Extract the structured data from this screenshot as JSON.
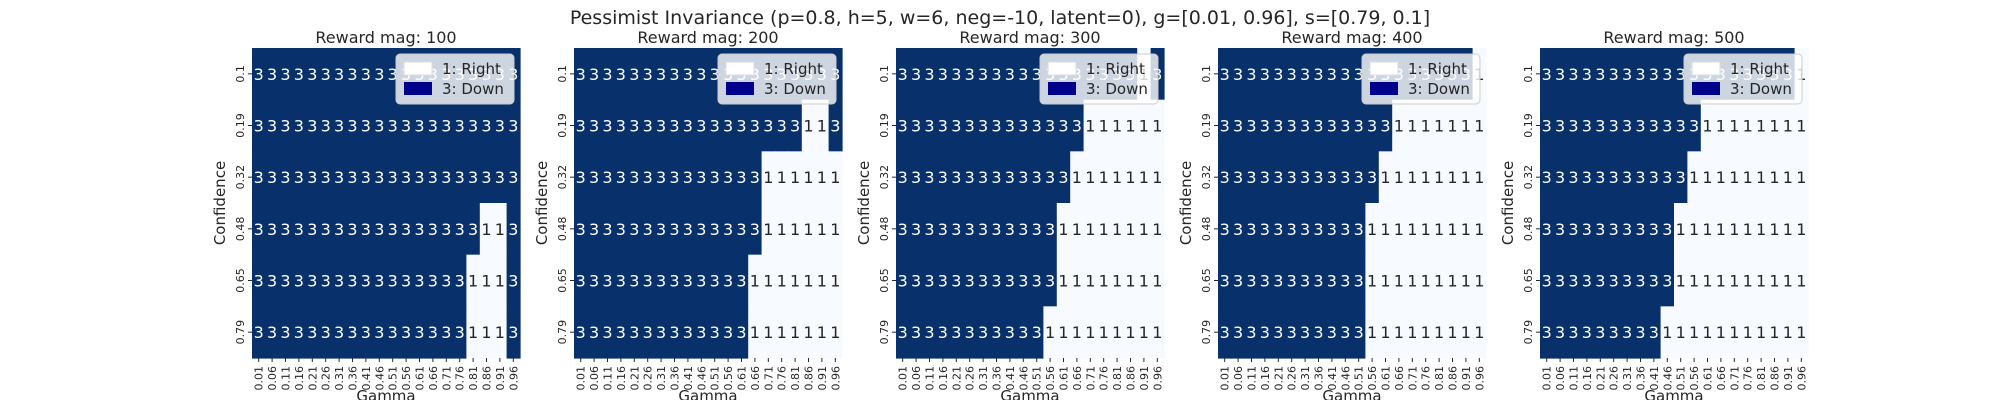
{
  "figure": {
    "title": "Pessimist Invariance (p=0.8, h=5, w=6, neg=-10, latent=0), g=[0.01, 0.96], s=[0.79, 0.1]"
  },
  "colors": {
    "down": "#08306b",
    "right": "#f7fbff",
    "text_on_down": "#ffffff",
    "text_on_right": "#262626",
    "legend_swatch_right": "#ffffff",
    "legend_swatch_down": "#00008b"
  },
  "chart_data": [
    {
      "type": "heatmap",
      "title": "Reward mag: 100",
      "xlabel": "Gamma",
      "ylabel": "Confidence",
      "x": [
        "0.01",
        "0.06",
        "0.11",
        "0.16",
        "0.21",
        "0.26",
        "0.31",
        "0.36",
        "0.41",
        "0.46",
        "0.51",
        "0.56",
        "0.61",
        "0.66",
        "0.71",
        "0.76",
        "0.81",
        "0.86",
        "0.91",
        "0.96"
      ],
      "y": [
        "0.1",
        "0.19",
        "0.32",
        "0.48",
        "0.65",
        "0.79"
      ],
      "values": [
        [
          3,
          3,
          3,
          3,
          3,
          3,
          3,
          3,
          3,
          3,
          3,
          3,
          3,
          3,
          3,
          3,
          3,
          3,
          3,
          3
        ],
        [
          3,
          3,
          3,
          3,
          3,
          3,
          3,
          3,
          3,
          3,
          3,
          3,
          3,
          3,
          3,
          3,
          3,
          3,
          3,
          3
        ],
        [
          3,
          3,
          3,
          3,
          3,
          3,
          3,
          3,
          3,
          3,
          3,
          3,
          3,
          3,
          3,
          3,
          3,
          3,
          3,
          3
        ],
        [
          3,
          3,
          3,
          3,
          3,
          3,
          3,
          3,
          3,
          3,
          3,
          3,
          3,
          3,
          3,
          3,
          3,
          1,
          1,
          3
        ],
        [
          3,
          3,
          3,
          3,
          3,
          3,
          3,
          3,
          3,
          3,
          3,
          3,
          3,
          3,
          3,
          3,
          1,
          1,
          1,
          3
        ],
        [
          3,
          3,
          3,
          3,
          3,
          3,
          3,
          3,
          3,
          3,
          3,
          3,
          3,
          3,
          3,
          3,
          1,
          1,
          1,
          3
        ]
      ],
      "legend": [
        {
          "value": 1,
          "label": "1: Right"
        },
        {
          "value": 3,
          "label": "3: Down"
        }
      ],
      "legend_position": "upper right",
      "grid": false
    },
    {
      "type": "heatmap",
      "title": "Reward mag: 200",
      "xlabel": "Gamma",
      "ylabel": "Confidence",
      "x": [
        "0.01",
        "0.06",
        "0.11",
        "0.16",
        "0.21",
        "0.26",
        "0.31",
        "0.36",
        "0.41",
        "0.46",
        "0.51",
        "0.56",
        "0.61",
        "0.66",
        "0.71",
        "0.76",
        "0.81",
        "0.86",
        "0.91",
        "0.96"
      ],
      "y": [
        "0.1",
        "0.19",
        "0.32",
        "0.48",
        "0.65",
        "0.79"
      ],
      "values": [
        [
          3,
          3,
          3,
          3,
          3,
          3,
          3,
          3,
          3,
          3,
          3,
          3,
          3,
          3,
          3,
          3,
          3,
          3,
          3,
          3
        ],
        [
          3,
          3,
          3,
          3,
          3,
          3,
          3,
          3,
          3,
          3,
          3,
          3,
          3,
          3,
          3,
          3,
          3,
          1,
          1,
          3
        ],
        [
          3,
          3,
          3,
          3,
          3,
          3,
          3,
          3,
          3,
          3,
          3,
          3,
          3,
          3,
          1,
          1,
          1,
          1,
          1,
          1
        ],
        [
          3,
          3,
          3,
          3,
          3,
          3,
          3,
          3,
          3,
          3,
          3,
          3,
          3,
          3,
          1,
          1,
          1,
          1,
          1,
          1
        ],
        [
          3,
          3,
          3,
          3,
          3,
          3,
          3,
          3,
          3,
          3,
          3,
          3,
          3,
          1,
          1,
          1,
          1,
          1,
          1,
          1
        ],
        [
          3,
          3,
          3,
          3,
          3,
          3,
          3,
          3,
          3,
          3,
          3,
          3,
          3,
          1,
          1,
          1,
          1,
          1,
          1,
          1
        ]
      ],
      "legend": [
        {
          "value": 1,
          "label": "1: Right"
        },
        {
          "value": 3,
          "label": "3: Down"
        }
      ],
      "legend_position": "upper right",
      "grid": false
    },
    {
      "type": "heatmap",
      "title": "Reward mag: 300",
      "xlabel": "Gamma",
      "ylabel": "Confidence",
      "x": [
        "0.01",
        "0.06",
        "0.11",
        "0.16",
        "0.21",
        "0.26",
        "0.31",
        "0.36",
        "0.41",
        "0.46",
        "0.51",
        "0.56",
        "0.61",
        "0.66",
        "0.71",
        "0.76",
        "0.81",
        "0.86",
        "0.91",
        "0.96"
      ],
      "y": [
        "0.1",
        "0.19",
        "0.32",
        "0.48",
        "0.65",
        "0.79"
      ],
      "values": [
        [
          3,
          3,
          3,
          3,
          3,
          3,
          3,
          3,
          3,
          3,
          3,
          3,
          3,
          3,
          3,
          3,
          3,
          3,
          1,
          3
        ],
        [
          3,
          3,
          3,
          3,
          3,
          3,
          3,
          3,
          3,
          3,
          3,
          3,
          3,
          3,
          1,
          1,
          1,
          1,
          1,
          1
        ],
        [
          3,
          3,
          3,
          3,
          3,
          3,
          3,
          3,
          3,
          3,
          3,
          3,
          3,
          1,
          1,
          1,
          1,
          1,
          1,
          1
        ],
        [
          3,
          3,
          3,
          3,
          3,
          3,
          3,
          3,
          3,
          3,
          3,
          3,
          1,
          1,
          1,
          1,
          1,
          1,
          1,
          1
        ],
        [
          3,
          3,
          3,
          3,
          3,
          3,
          3,
          3,
          3,
          3,
          3,
          3,
          1,
          1,
          1,
          1,
          1,
          1,
          1,
          1
        ],
        [
          3,
          3,
          3,
          3,
          3,
          3,
          3,
          3,
          3,
          3,
          3,
          1,
          1,
          1,
          1,
          1,
          1,
          1,
          1,
          1
        ]
      ],
      "legend": [
        {
          "value": 1,
          "label": "1: Right"
        },
        {
          "value": 3,
          "label": "3: Down"
        }
      ],
      "legend_position": "upper right",
      "grid": false
    },
    {
      "type": "heatmap",
      "title": "Reward mag: 400",
      "xlabel": "Gamma",
      "ylabel": "Confidence",
      "x": [
        "0.01",
        "0.06",
        "0.11",
        "0.16",
        "0.21",
        "0.26",
        "0.31",
        "0.36",
        "0.41",
        "0.46",
        "0.51",
        "0.56",
        "0.61",
        "0.66",
        "0.71",
        "0.76",
        "0.81",
        "0.86",
        "0.91",
        "0.96"
      ],
      "y": [
        "0.1",
        "0.19",
        "0.32",
        "0.48",
        "0.65",
        "0.79"
      ],
      "values": [
        [
          3,
          3,
          3,
          3,
          3,
          3,
          3,
          3,
          3,
          3,
          3,
          3,
          3,
          3,
          3,
          3,
          3,
          3,
          3,
          1
        ],
        [
          3,
          3,
          3,
          3,
          3,
          3,
          3,
          3,
          3,
          3,
          3,
          3,
          3,
          1,
          1,
          1,
          1,
          1,
          1,
          1
        ],
        [
          3,
          3,
          3,
          3,
          3,
          3,
          3,
          3,
          3,
          3,
          3,
          3,
          1,
          1,
          1,
          1,
          1,
          1,
          1,
          1
        ],
        [
          3,
          3,
          3,
          3,
          3,
          3,
          3,
          3,
          3,
          3,
          3,
          1,
          1,
          1,
          1,
          1,
          1,
          1,
          1,
          1
        ],
        [
          3,
          3,
          3,
          3,
          3,
          3,
          3,
          3,
          3,
          3,
          3,
          1,
          1,
          1,
          1,
          1,
          1,
          1,
          1,
          1
        ],
        [
          3,
          3,
          3,
          3,
          3,
          3,
          3,
          3,
          3,
          3,
          3,
          1,
          1,
          1,
          1,
          1,
          1,
          1,
          1,
          1
        ]
      ],
      "legend": [
        {
          "value": 1,
          "label": "1: Right"
        },
        {
          "value": 3,
          "label": "3: Down"
        }
      ],
      "legend_position": "upper right",
      "grid": false
    },
    {
      "type": "heatmap",
      "title": "Reward mag: 500",
      "xlabel": "Gamma",
      "ylabel": "Confidence",
      "x": [
        "0.01",
        "0.06",
        "0.11",
        "0.16",
        "0.21",
        "0.26",
        "0.31",
        "0.36",
        "0.41",
        "0.46",
        "0.51",
        "0.56",
        "0.61",
        "0.66",
        "0.71",
        "0.76",
        "0.81",
        "0.86",
        "0.91",
        "0.96"
      ],
      "y": [
        "0.1",
        "0.19",
        "0.32",
        "0.48",
        "0.65",
        "0.79"
      ],
      "values": [
        [
          3,
          3,
          3,
          3,
          3,
          3,
          3,
          3,
          3,
          3,
          3,
          3,
          3,
          3,
          3,
          3,
          3,
          3,
          3,
          1
        ],
        [
          3,
          3,
          3,
          3,
          3,
          3,
          3,
          3,
          3,
          3,
          3,
          3,
          1,
          1,
          1,
          1,
          1,
          1,
          1,
          1
        ],
        [
          3,
          3,
          3,
          3,
          3,
          3,
          3,
          3,
          3,
          3,
          3,
          1,
          1,
          1,
          1,
          1,
          1,
          1,
          1,
          1
        ],
        [
          3,
          3,
          3,
          3,
          3,
          3,
          3,
          3,
          3,
          3,
          1,
          1,
          1,
          1,
          1,
          1,
          1,
          1,
          1,
          1
        ],
        [
          3,
          3,
          3,
          3,
          3,
          3,
          3,
          3,
          3,
          3,
          1,
          1,
          1,
          1,
          1,
          1,
          1,
          1,
          1,
          1
        ],
        [
          3,
          3,
          3,
          3,
          3,
          3,
          3,
          3,
          3,
          1,
          1,
          1,
          1,
          1,
          1,
          1,
          1,
          1,
          1,
          1
        ]
      ],
      "legend": [
        {
          "value": 1,
          "label": "1: Right"
        },
        {
          "value": 3,
          "label": "3: Down"
        }
      ],
      "legend_position": "upper right",
      "grid": false
    }
  ]
}
